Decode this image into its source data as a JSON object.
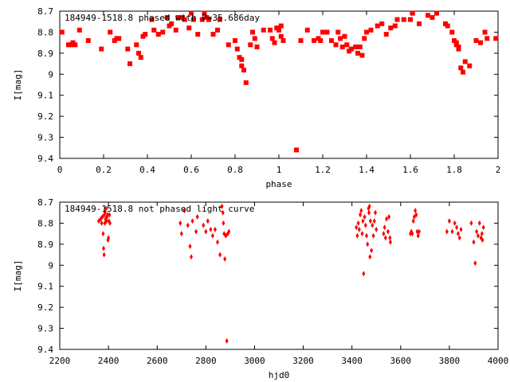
{
  "colors": {
    "points": "#ff0000",
    "axes": "#000000",
    "background": "#ffffff"
  },
  "chart_data": [
    {
      "type": "scatter",
      "title": "184949-1518.8 phased with P=35.686day",
      "xlabel": "phase",
      "ylabel": "I[mag]",
      "xlim": [
        0,
        2
      ],
      "ylim": [
        8.7,
        9.4
      ],
      "y_inverted": true,
      "grid": false,
      "marker": "filled square",
      "xticks": [
        "0",
        "0.2",
        "0.4",
        "0.6",
        "0.8",
        "1",
        "1.2",
        "1.4",
        "1.6",
        "1.8",
        "2"
      ],
      "yticks": [
        "8.7",
        "8.8",
        "8.9",
        "9",
        "9.1",
        "9.2",
        "9.3",
        "9.4"
      ],
      "x": [
        0.01,
        0.04,
        0.05,
        0.06,
        0.07,
        0.09,
        0.13,
        0.19,
        0.23,
        0.25,
        0.26,
        0.27,
        0.31,
        0.32,
        0.35,
        0.36,
        0.37,
        0.38,
        0.39,
        0.42,
        0.43,
        0.45,
        0.47,
        0.49,
        0.5,
        0.51,
        0.53,
        0.54,
        0.56,
        0.57,
        0.59,
        0.6,
        0.61,
        0.63,
        0.65,
        0.66,
        0.67,
        0.68,
        0.7,
        0.72,
        0.73,
        0.77,
        0.8,
        0.81,
        0.82,
        0.83,
        0.83,
        0.84,
        0.85,
        0.87,
        0.88,
        0.89,
        0.9,
        0.93,
        0.96,
        0.97,
        0.98,
        0.99,
        1.0,
        1.01,
        1.01,
        1.02,
        1.08,
        1.1,
        1.13,
        1.16,
        1.18,
        1.19,
        1.2,
        1.22,
        1.24,
        1.26,
        1.27,
        1.28,
        1.29,
        1.3,
        1.31,
        1.32,
        1.33,
        1.35,
        1.36,
        1.37,
        1.38,
        1.39,
        1.4,
        1.42,
        1.45,
        1.47,
        1.49,
        1.51,
        1.53,
        1.54,
        1.57,
        1.6,
        1.61,
        1.64,
        1.68,
        1.7,
        1.72,
        1.76,
        1.77,
        1.79,
        1.8,
        1.81,
        1.81,
        1.82,
        1.82,
        1.83,
        1.84,
        1.85,
        1.87,
        1.9,
        1.92,
        1.94,
        1.95,
        1.99
      ],
      "y": [
        8.8,
        8.86,
        8.86,
        8.85,
        8.86,
        8.79,
        8.84,
        8.88,
        8.8,
        8.84,
        8.83,
        8.83,
        8.88,
        8.95,
        8.86,
        8.9,
        8.92,
        8.82,
        8.81,
        8.74,
        8.79,
        8.81,
        8.8,
        8.73,
        8.77,
        8.76,
        8.79,
        8.73,
        8.73,
        8.74,
        8.78,
        8.71,
        8.74,
        8.81,
        8.74,
        8.71,
        8.73,
        8.74,
        8.81,
        8.79,
        8.74,
        8.86,
        8.84,
        8.88,
        8.92,
        8.93,
        8.96,
        8.98,
        9.04,
        8.86,
        8.8,
        8.83,
        8.87,
        8.79,
        8.79,
        8.83,
        8.85,
        8.78,
        8.79,
        8.77,
        8.82,
        8.84,
        9.36,
        8.84,
        8.79,
        8.84,
        8.83,
        8.84,
        8.8,
        8.8,
        8.84,
        8.86,
        8.8,
        8.83,
        8.87,
        8.82,
        8.86,
        8.89,
        8.88,
        8.87,
        8.9,
        8.87,
        8.91,
        8.83,
        8.8,
        8.79,
        8.77,
        8.76,
        8.81,
        8.78,
        8.77,
        8.74,
        8.74,
        8.74,
        8.71,
        8.76,
        8.72,
        8.73,
        8.71,
        8.76,
        8.77,
        8.8,
        8.84,
        8.85,
        8.86,
        8.87,
        8.88,
        8.97,
        8.99,
        8.94,
        8.96,
        8.84,
        8.85,
        8.8,
        8.83,
        8.83
      ]
    },
    {
      "type": "scatter",
      "title": "184949-1518.8 not phased light curve",
      "xlabel": "hjd0",
      "ylabel": "I[mag]",
      "xlim": [
        2200,
        4000
      ],
      "ylim": [
        8.7,
        9.4
      ],
      "y_inverted": true,
      "grid": false,
      "marker": "small filled diamond",
      "xticks": [
        "2200",
        "2400",
        "2600",
        "2800",
        "3000",
        "3200",
        "3400",
        "3600",
        "3800",
        "4000"
      ],
      "yticks": [
        "8.7",
        "8.8",
        "8.9",
        "9",
        "9.1",
        "9.2",
        "9.3",
        "9.4"
      ],
      "x": [
        2360,
        2368,
        2372,
        2375,
        2378,
        2380,
        2382,
        2383,
        2385,
        2386,
        2388,
        2390,
        2392,
        2394,
        2396,
        2398,
        2400,
        2402,
        2404,
        2406,
        2695,
        2700,
        2712,
        2726,
        2735,
        2740,
        2745,
        2760,
        2765,
        2790,
        2800,
        2808,
        2820,
        2828,
        2838,
        2848,
        2858,
        2866,
        2870,
        2872,
        2875,
        2878,
        2882,
        2886,
        2890,
        2895,
        3418,
        3422,
        3426,
        3430,
        3434,
        3438,
        3442,
        3445,
        3448,
        3452,
        3456,
        3460,
        3464,
        3468,
        3470,
        3472,
        3474,
        3476,
        3480,
        3484,
        3488,
        3492,
        3496,
        3500,
        3530,
        3534,
        3538,
        3542,
        3548,
        3552,
        3556,
        3558,
        3640,
        3644,
        3648,
        3652,
        3656,
        3660,
        3664,
        3668,
        3672,
        3676,
        3790,
        3800,
        3812,
        3822,
        3830,
        3836,
        3842,
        3848,
        3890,
        3900,
        3906,
        3912,
        3918,
        3924,
        3930,
        3934,
        3936,
        3940
      ],
      "y": [
        8.79,
        8.78,
        8.8,
        8.77,
        8.85,
        8.92,
        8.95,
        8.76,
        8.8,
        8.75,
        8.78,
        8.73,
        8.79,
        8.77,
        8.76,
        8.88,
        8.87,
        8.79,
        8.76,
        8.8,
        8.8,
        8.85,
        8.74,
        8.81,
        8.91,
        8.96,
        8.79,
        8.84,
        8.77,
        8.81,
        8.84,
        8.79,
        8.83,
        8.86,
        8.83,
        8.89,
        8.95,
        8.72,
        8.75,
        8.8,
        8.85,
        8.97,
        8.86,
        9.36,
        8.85,
        8.84,
        8.82,
        8.86,
        8.8,
        8.83,
        8.76,
        8.74,
        8.85,
        8.79,
        9.04,
        8.77,
        8.81,
        8.86,
        8.9,
        8.73,
        8.75,
        8.72,
        8.96,
        8.79,
        8.93,
        8.81,
        8.86,
        8.79,
        8.75,
        8.83,
        8.85,
        8.82,
        8.87,
        8.78,
        8.84,
        8.77,
        8.87,
        8.89,
        8.85,
        8.84,
        8.85,
        8.79,
        8.77,
        8.74,
        8.76,
        8.84,
        8.86,
        8.84,
        8.84,
        8.79,
        8.84,
        8.8,
        8.82,
        8.85,
        8.87,
        8.83,
        8.8,
        8.89,
        8.99,
        8.84,
        8.86,
        8.8,
        8.87,
        8.85,
        8.88,
        8.82
      ]
    }
  ]
}
